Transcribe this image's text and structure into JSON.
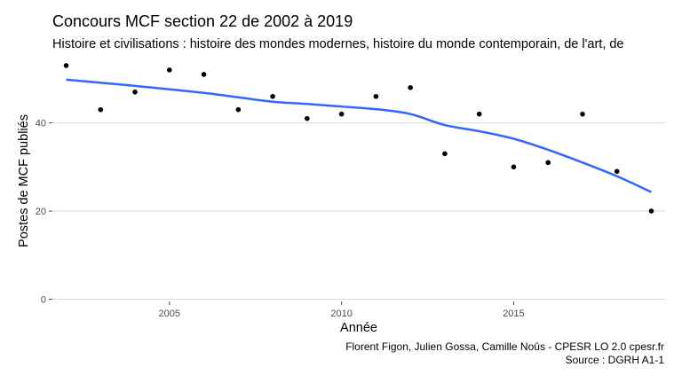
{
  "chart_data": {
    "type": "scatter",
    "title": "Concours MCF section 22 de 2002 à 2019",
    "subtitle": "Histoire et civilisations : histoire des mondes modernes, histoire du monde contemporain, de l'art, de",
    "xlabel": "Année",
    "ylabel": "Postes de MCF publiés",
    "xlim": [
      2001.6,
      2019.4
    ],
    "ylim": [
      -0.5,
      55
    ],
    "x_ticks": [
      2005,
      2010,
      2015
    ],
    "y_ticks": [
      0,
      20,
      40
    ],
    "x_tick_labels": [
      "2005",
      "2010",
      "2015"
    ],
    "y_tick_labels": [
      "0",
      "20",
      "40"
    ],
    "grid": "horizontal",
    "colors": {
      "points": "#000000",
      "smooth": "#3366ff",
      "grid": "#d9d9d9"
    },
    "points": {
      "x": [
        2002,
        2003,
        2004,
        2005,
        2006,
        2007,
        2008,
        2009,
        2010,
        2011,
        2012,
        2013,
        2014,
        2015,
        2016,
        2017,
        2018,
        2019
      ],
      "y": [
        53,
        43,
        47,
        52,
        51,
        43,
        46,
        41,
        42,
        46,
        48,
        33,
        42,
        30,
        31,
        42,
        29,
        20
      ]
    },
    "smooth": {
      "x": [
        2002,
        2003,
        2004,
        2005,
        2006,
        2007,
        2008,
        2009,
        2010,
        2011,
        2012,
        2013,
        2014,
        2015,
        2016,
        2017,
        2018,
        2019
      ],
      "y": [
        49.8,
        49.1,
        48.4,
        47.6,
        46.8,
        45.8,
        44.8,
        44.3,
        43.7,
        43.1,
        42.0,
        39.5,
        38.1,
        36.4,
        33.9,
        31.0,
        27.9,
        24.3
      ]
    }
  },
  "caption": {
    "line1": "Florent Figon, Julien Gossa, Camille Noûs - CPESR LO 2.0 cpesr.fr",
    "line2": "Source : DGRH A1-1"
  }
}
